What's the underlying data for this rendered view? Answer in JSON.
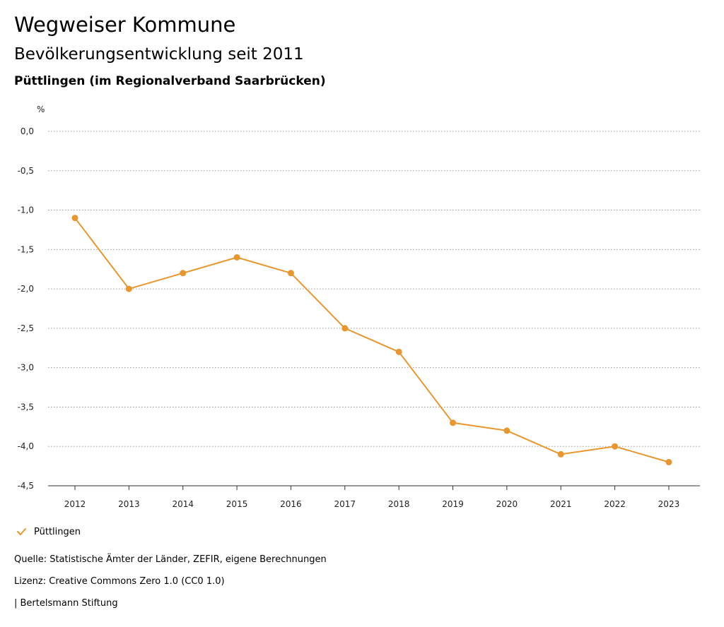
{
  "header": {
    "title": "Wegweiser Kommune",
    "subtitle": "Bevölkerungsentwicklung seit 2011",
    "region": "Püttlingen (im Regionalverband Saarbrücken)"
  },
  "chart_data": {
    "type": "line",
    "ylabel": "%",
    "xlabel": "",
    "categories": [
      "2012",
      "2013",
      "2014",
      "2015",
      "2016",
      "2017",
      "2018",
      "2019",
      "2020",
      "2021",
      "2022",
      "2023"
    ],
    "series": [
      {
        "name": "Püttlingen",
        "color": "#e8962e",
        "values": [
          -1.1,
          -2.0,
          -1.8,
          -1.6,
          -1.8,
          -2.5,
          -2.8,
          -3.7,
          -3.8,
          -4.1,
          -4.0,
          -4.2
        ]
      }
    ],
    "ylim": [
      -4.5,
      0.0
    ],
    "yticks": [
      0.0,
      -0.5,
      -1.0,
      -1.5,
      -2.0,
      -2.5,
      -3.0,
      -3.5,
      -4.0,
      -4.5
    ],
    "ytick_labels": [
      "0,0",
      "-0,5",
      "-1,0",
      "-1,5",
      "-2,0",
      "-2,5",
      "-3,0",
      "-3,5",
      "-4,0",
      "-4,5"
    ],
    "grid": true,
    "legend": "bottom-left"
  },
  "legend": {
    "label": "Püttlingen",
    "icon": "check-icon"
  },
  "footer": {
    "source": "Quelle: Statistische Ämter der Länder, ZEFIR, eigene Berechnungen",
    "license": "Lizenz: Creative Commons Zero 1.0 (CC0 1.0)",
    "publisher": "| Bertelsmann Stiftung"
  }
}
